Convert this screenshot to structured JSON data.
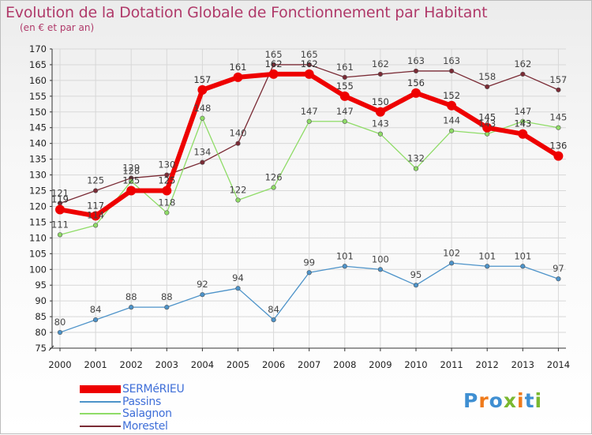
{
  "title": "Evolution de la Dotation Globale de Fonctionnement par Habitant",
  "subtitle": "(en € et par an)",
  "logo": {
    "letters": [
      "P",
      "r",
      "o",
      "x",
      "i",
      "t",
      "i"
    ],
    "colors": [
      "#3f8fd2",
      "#ef7a1a",
      "#3f8fd2",
      "#7ab830",
      "#ef7a1a",
      "#3f8fd2",
      "#7ab830"
    ]
  },
  "chart_data": {
    "type": "line",
    "title": "Evolution de la Dotation Globale de Fonctionnement par Habitant",
    "subtitle": "(en € et par an)",
    "xlabel": "",
    "ylabel": "",
    "x": [
      "2000",
      "2001",
      "2002",
      "2003",
      "2004",
      "2005",
      "2006",
      "2007",
      "2008",
      "2009",
      "2010",
      "2011",
      "2012",
      "2013",
      "2014"
    ],
    "ylim": [
      75,
      170
    ],
    "yticks": [
      75,
      80,
      85,
      90,
      95,
      100,
      105,
      110,
      115,
      120,
      125,
      130,
      135,
      140,
      145,
      150,
      155,
      160,
      165,
      170
    ],
    "grid": true,
    "legend": "bottom-left",
    "series": [
      {
        "name": "Morestel",
        "color": "#7a2b35",
        "width": 1.3,
        "marker": 2.8,
        "values": [
          121,
          125,
          129,
          130,
          134,
          140,
          165,
          165,
          161,
          162,
          163,
          163,
          158,
          162,
          157
        ]
      },
      {
        "name": "Salagnon",
        "color": "#8fdc67",
        "width": 1.3,
        "marker": 2.8,
        "values": [
          111,
          114,
          128,
          118,
          148,
          122,
          126,
          147,
          147,
          143,
          132,
          144,
          143,
          147,
          145
        ]
      },
      {
        "name": "Passins",
        "color": "#4d93c9",
        "width": 1.3,
        "marker": 2.8,
        "values": [
          80,
          84,
          88,
          88,
          92,
          94,
          84,
          99,
          101,
          100,
          95,
          102,
          101,
          101,
          97
        ]
      },
      {
        "name": "SERMéRIEU",
        "color": "#ee0000",
        "width": 6,
        "marker": 6,
        "values": [
          119,
          117,
          125,
          125,
          157,
          161,
          162,
          162,
          155,
          150,
          156,
          152,
          145,
          143,
          136
        ]
      }
    ],
    "legend_order": [
      "SERMéRIEU",
      "Passins",
      "Salagnon",
      "Morestel"
    ]
  }
}
